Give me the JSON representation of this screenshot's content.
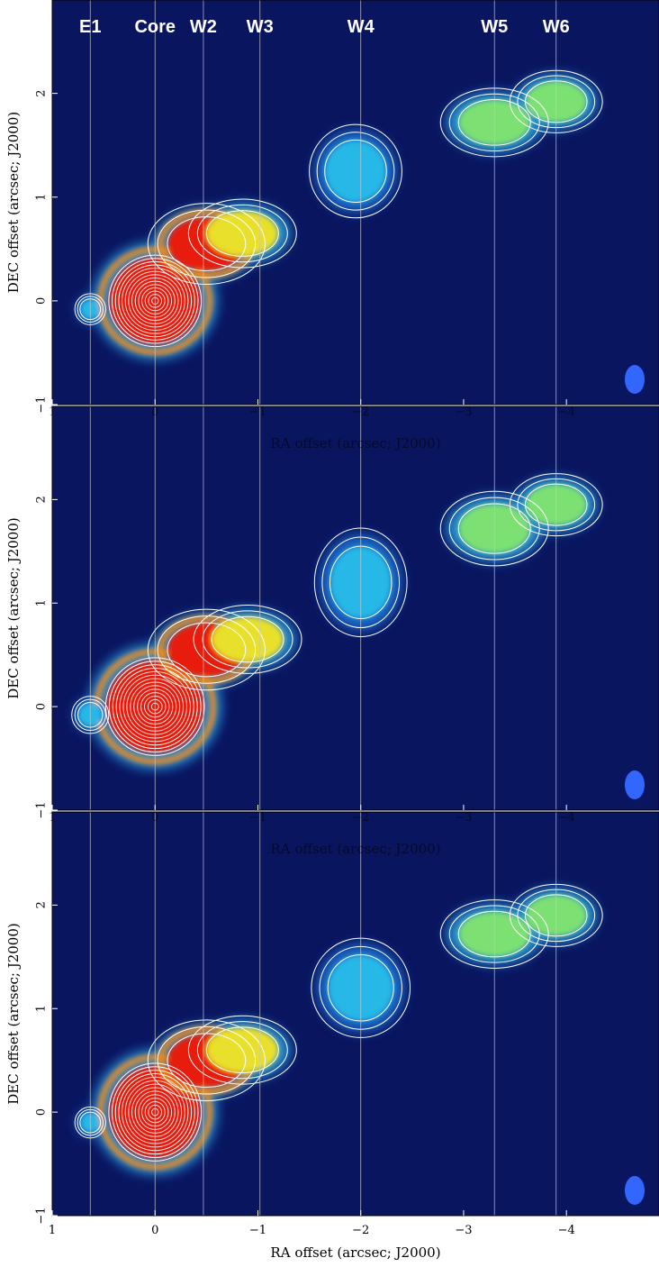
{
  "chart_data": {
    "type": "heatmap",
    "description_free": true,
    "xlabel": "RA offset (arcsec; J2000)",
    "ylabel": "DEC offset (arcsec; J2000)",
    "xlim": [
      1,
      -4.9
    ],
    "ylim": [
      -1,
      2.9
    ],
    "xticks": [
      1,
      0,
      -1,
      -2,
      -3,
      -4
    ],
    "xtick_labels": [
      "1",
      "0",
      "−1",
      "−2",
      "−3",
      "−4"
    ],
    "yticks": [
      -1,
      0,
      1,
      2
    ],
    "ytick_labels": [
      "−1",
      "0",
      "1",
      "2"
    ],
    "components": [
      {
        "label": "E1",
        "ra": 0.63
      },
      {
        "label": "Core",
        "ra": 0.0
      },
      {
        "label": "W2",
        "ra": -0.47
      },
      {
        "label": "W3",
        "ra": -1.02
      },
      {
        "label": "W4",
        "ra": -2.0
      },
      {
        "label": "W5",
        "ra": -3.3
      },
      {
        "label": "W6",
        "ra": -3.9
      }
    ],
    "panels": [
      {
        "name": "top",
        "blobs": [
          {
            "ra": 0.0,
            "dec": 0.0,
            "rx": 0.45,
            "ry": 0.42,
            "level": "red"
          },
          {
            "ra": -0.5,
            "dec": 0.55,
            "rx": 0.38,
            "ry": 0.26,
            "level": "red"
          },
          {
            "ra": -0.85,
            "dec": 0.65,
            "rx": 0.35,
            "ry": 0.22,
            "level": "yellow"
          },
          {
            "ra": -1.95,
            "dec": 1.25,
            "rx": 0.3,
            "ry": 0.3,
            "level": "cyan"
          },
          {
            "ra": -3.3,
            "dec": 1.72,
            "rx": 0.35,
            "ry": 0.22,
            "level": "green"
          },
          {
            "ra": -3.9,
            "dec": 1.92,
            "rx": 0.3,
            "ry": 0.2,
            "level": "green"
          },
          {
            "ra": 0.63,
            "dec": -0.08,
            "rx": 0.1,
            "ry": 0.1,
            "level": "cyan"
          }
        ]
      },
      {
        "name": "middle",
        "blobs": [
          {
            "ra": 0.0,
            "dec": 0.0,
            "rx": 0.48,
            "ry": 0.45,
            "level": "red"
          },
          {
            "ra": -0.5,
            "dec": 0.55,
            "rx": 0.38,
            "ry": 0.26,
            "level": "red"
          },
          {
            "ra": -0.9,
            "dec": 0.65,
            "rx": 0.35,
            "ry": 0.22,
            "level": "yellow"
          },
          {
            "ra": -2.0,
            "dec": 1.2,
            "rx": 0.3,
            "ry": 0.35,
            "level": "cyan"
          },
          {
            "ra": -3.3,
            "dec": 1.72,
            "rx": 0.35,
            "ry": 0.24,
            "level": "green"
          },
          {
            "ra": -3.9,
            "dec": 1.95,
            "rx": 0.3,
            "ry": 0.2,
            "level": "green"
          },
          {
            "ra": 0.63,
            "dec": -0.08,
            "rx": 0.12,
            "ry": 0.12,
            "level": "cyan"
          }
        ]
      },
      {
        "name": "bottom",
        "blobs": [
          {
            "ra": 0.0,
            "dec": 0.0,
            "rx": 0.45,
            "ry": 0.45,
            "level": "red"
          },
          {
            "ra": -0.5,
            "dec": 0.5,
            "rx": 0.38,
            "ry": 0.26,
            "level": "red"
          },
          {
            "ra": -0.85,
            "dec": 0.6,
            "rx": 0.35,
            "ry": 0.22,
            "level": "yellow"
          },
          {
            "ra": -2.0,
            "dec": 1.2,
            "rx": 0.32,
            "ry": 0.32,
            "level": "cyan"
          },
          {
            "ra": -3.3,
            "dec": 1.72,
            "rx": 0.35,
            "ry": 0.22,
            "level": "green"
          },
          {
            "ra": -3.9,
            "dec": 1.9,
            "rx": 0.3,
            "ry": 0.2,
            "level": "green"
          },
          {
            "ra": 0.63,
            "dec": -0.1,
            "rx": 0.1,
            "ry": 0.1,
            "level": "cyan"
          }
        ]
      }
    ],
    "colors": {
      "background": "#0a1560",
      "cyan": "#27b8e6",
      "green": "#7de072",
      "yellow": "#e8e02a",
      "orange": "#f08a1a",
      "red": "#e81a10",
      "contour": "#ffffff",
      "beam": "#3366ff"
    }
  }
}
